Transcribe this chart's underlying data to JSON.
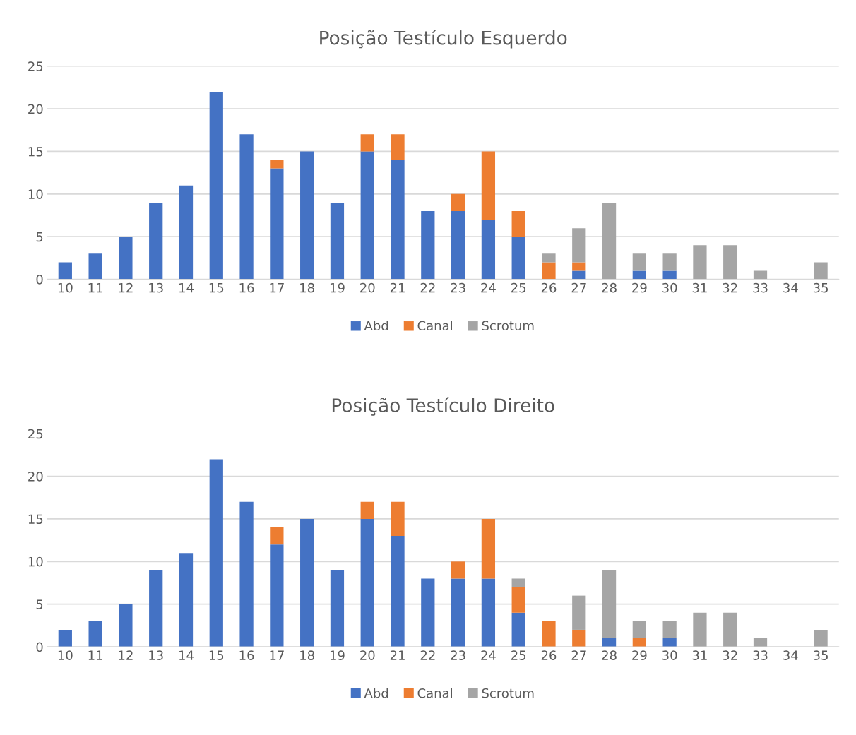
{
  "chart_data": [
    {
      "type": "bar",
      "title": "Posição Testículo Esquerdo",
      "stacked": true,
      "categories": [
        "10",
        "11",
        "12",
        "13",
        "14",
        "15",
        "16",
        "17",
        "18",
        "19",
        "20",
        "21",
        "22",
        "23",
        "24",
        "25",
        "26",
        "27",
        "28",
        "29",
        "30",
        "31",
        "32",
        "33",
        "34",
        "35"
      ],
      "ylim": [
        0,
        25
      ],
      "yticks": [
        0,
        5,
        10,
        15,
        20,
        25
      ],
      "grid": "y",
      "legend": "bottom",
      "series": [
        {
          "name": "Abd",
          "color": "#4472c4",
          "values": [
            2,
            3,
            5,
            9,
            11,
            22,
            17,
            13,
            15,
            9,
            15,
            14,
            8,
            8,
            7,
            5,
            0,
            1,
            0,
            1,
            1,
            0,
            0,
            0,
            0,
            0
          ]
        },
        {
          "name": "Canal",
          "color": "#ed7d31",
          "values": [
            0,
            0,
            0,
            0,
            0,
            0,
            0,
            1,
            0,
            0,
            2,
            3,
            0,
            2,
            8,
            3,
            2,
            1,
            0,
            0,
            0,
            0,
            0,
            0,
            0,
            0
          ]
        },
        {
          "name": "Scrotum",
          "color": "#a5a5a5",
          "values": [
            0,
            0,
            0,
            0,
            0,
            0,
            0,
            0,
            0,
            0,
            0,
            0,
            0,
            0,
            0,
            0,
            1,
            4,
            9,
            2,
            2,
            4,
            4,
            1,
            0,
            2
          ]
        }
      ]
    },
    {
      "type": "bar",
      "title": "Posição Testículo Direito",
      "stacked": true,
      "categories": [
        "10",
        "11",
        "12",
        "13",
        "14",
        "15",
        "16",
        "17",
        "18",
        "19",
        "20",
        "21",
        "22",
        "23",
        "24",
        "25",
        "26",
        "27",
        "28",
        "29",
        "30",
        "31",
        "32",
        "33",
        "34",
        "35"
      ],
      "ylim": [
        0,
        25
      ],
      "yticks": [
        0,
        5,
        10,
        15,
        20,
        25
      ],
      "grid": "y",
      "legend": "bottom",
      "series": [
        {
          "name": "Abd",
          "color": "#4472c4",
          "values": [
            2,
            3,
            5,
            9,
            11,
            22,
            17,
            12,
            15,
            9,
            15,
            13,
            8,
            8,
            8,
            4,
            0,
            0,
            1,
            0,
            1,
            0,
            0,
            0,
            0,
            0
          ]
        },
        {
          "name": "Canal",
          "color": "#ed7d31",
          "values": [
            0,
            0,
            0,
            0,
            0,
            0,
            0,
            2,
            0,
            0,
            2,
            4,
            0,
            2,
            7,
            3,
            3,
            2,
            0,
            1,
            0,
            0,
            0,
            0,
            0,
            0
          ]
        },
        {
          "name": "Scrotum",
          "color": "#a5a5a5",
          "values": [
            0,
            0,
            0,
            0,
            0,
            0,
            0,
            0,
            0,
            0,
            0,
            0,
            0,
            0,
            0,
            1,
            0,
            4,
            8,
            2,
            2,
            4,
            4,
            1,
            0,
            2
          ]
        }
      ]
    }
  ]
}
